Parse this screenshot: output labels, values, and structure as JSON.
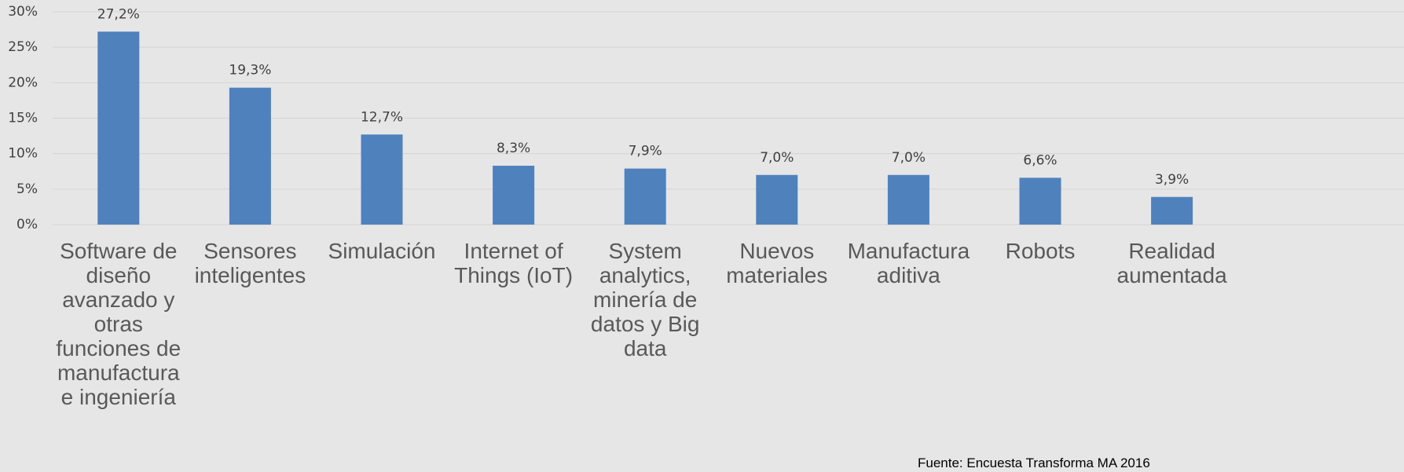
{
  "chart_data": {
    "type": "bar",
    "categories": [
      "Software de diseño avanzado y otras funciones de manufactura e ingeniería",
      "Sensores inteligentes",
      "Simulación",
      "Internet of Things (IoT)",
      "System analytics, minería de datos y Big data",
      "Nuevos materiales",
      "Manufactura aditiva",
      "Robots",
      "Realidad aumentada"
    ],
    "values": [
      27.2,
      19.3,
      12.7,
      8.3,
      7.9,
      7.0,
      7.0,
      6.6,
      3.9
    ],
    "value_labels": [
      "27,2%",
      "19,3%",
      "12,7%",
      "8,3%",
      "7,9%",
      "7,0%",
      "7,0%",
      "6,6%",
      "3,9%"
    ],
    "color": "#4f81bd",
    "ylim": [
      0,
      30
    ],
    "yticks": [
      {
        "value": 0,
        "label": "0%"
      },
      {
        "value": 5,
        "label": "5%"
      },
      {
        "value": 10,
        "label": "10%"
      },
      {
        "value": 15,
        "label": "15%"
      },
      {
        "value": 20,
        "label": "20%"
      },
      {
        "value": 25,
        "label": "25%"
      },
      {
        "value": 30,
        "label": "30%"
      }
    ],
    "grid": true,
    "source": "Fuente: Encuesta Transforma MA 2016"
  }
}
